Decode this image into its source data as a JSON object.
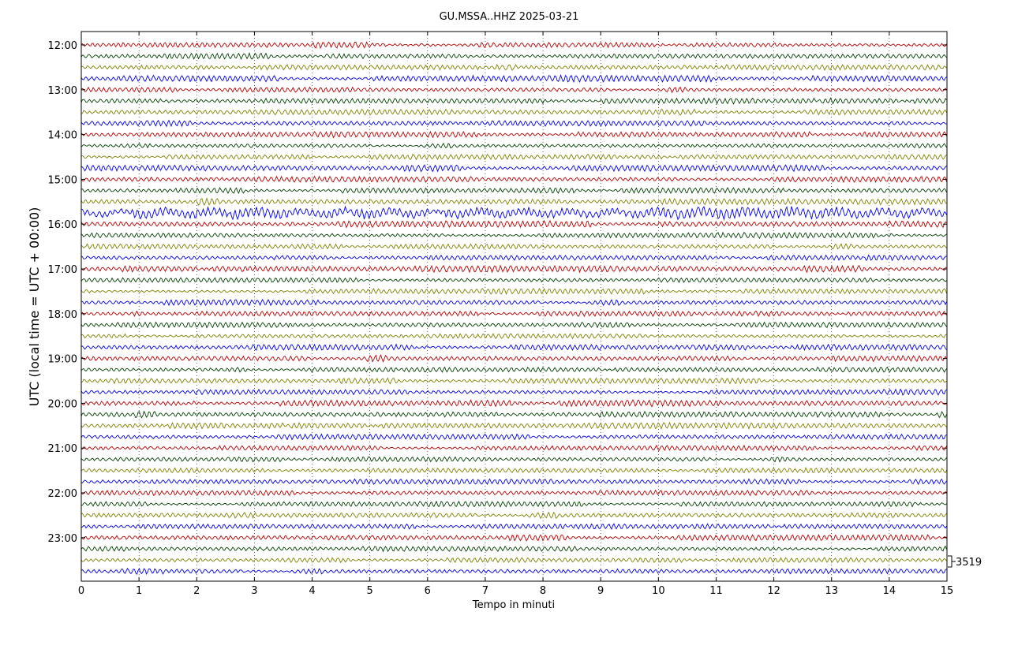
{
  "chart_data": {
    "type": "line",
    "title": "GU.MSSA..HHZ 2025-03-21",
    "xlabel": "Tempo in minuti",
    "ylabel": "UTC (local time = UTC + 00:00)",
    "xlim": [
      0,
      15
    ],
    "x_ticks": [
      0,
      1,
      2,
      3,
      4,
      5,
      6,
      7,
      8,
      9,
      10,
      11,
      12,
      13,
      14,
      15
    ],
    "y_tick_labels": [
      "12:00",
      "13:00",
      "14:00",
      "15:00",
      "16:00",
      "17:00",
      "18:00",
      "19:00",
      "20:00",
      "21:00",
      "22:00",
      "23:00"
    ],
    "rows_per_hour": 4,
    "row_count": 48,
    "row_minutes": 15,
    "grid": true,
    "colors": [
      "#b00000",
      "#004000",
      "#808000",
      "#0000dd"
    ],
    "scale_label": "3519",
    "series_note_rows": "one helicorder trace per 15-minute row starting at 12:00 UTC"
  }
}
